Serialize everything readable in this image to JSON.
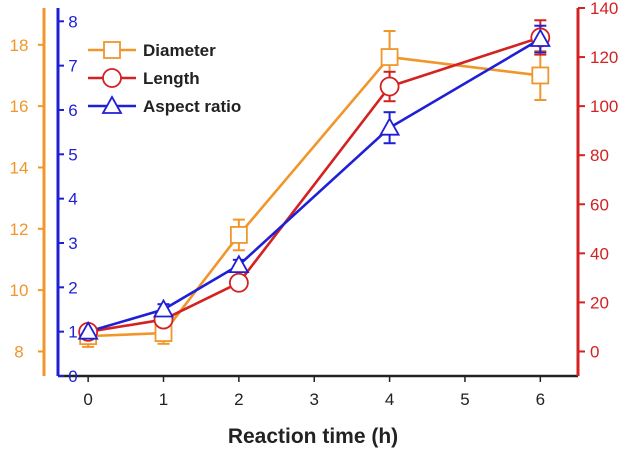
{
  "chart_data": {
    "type": "line",
    "title": "",
    "xlabel": "Reaction time (h)",
    "x": [
      0,
      1,
      2,
      4,
      6
    ],
    "x_ticks": [
      "0",
      "1",
      "2",
      "3",
      "4",
      "5",
      "6"
    ],
    "xlim": [
      -0.4,
      6.5
    ],
    "legend_position": "top-left",
    "axes": {
      "diameter": {
        "side": "left-outer",
        "color": "#F0962A",
        "ylim": [
          7.2,
          19.2
        ],
        "ticks": [
          "8",
          "10",
          "12",
          "14",
          "16",
          "18"
        ]
      },
      "aspect": {
        "side": "left-inner",
        "color": "#1F1FD6",
        "ylim": [
          0,
          8.3
        ],
        "ticks": [
          "0",
          "1",
          "2",
          "3",
          "4",
          "5",
          "6",
          "7",
          "8"
        ]
      },
      "length": {
        "side": "right",
        "color": "#D42121",
        "ylim": [
          -10,
          140
        ],
        "ticks": [
          "0",
          "20",
          "40",
          "60",
          "80",
          "100",
          "120",
          "140"
        ]
      }
    },
    "series": [
      {
        "name": "Diameter",
        "axis": "diameter",
        "color": "#F0962A",
        "marker": "square",
        "values": [
          8.5,
          8.6,
          11.8,
          17.6,
          17.0
        ],
        "errors": [
          0.35,
          0.35,
          0.5,
          0.85,
          0.8
        ]
      },
      {
        "name": "Length",
        "axis": "length",
        "color": "#D42121",
        "marker": "circle",
        "values": [
          8,
          13,
          28,
          108,
          128
        ],
        "errors": [
          2,
          2,
          2,
          6,
          7
        ]
      },
      {
        "name": "Aspect ratio",
        "axis": "aspect",
        "color": "#1F1FD6",
        "marker": "triangle",
        "values": [
          1.0,
          1.5,
          2.5,
          5.6,
          7.6
        ],
        "errors": [
          0.1,
          0.12,
          0.12,
          0.35,
          0.3
        ]
      }
    ]
  }
}
